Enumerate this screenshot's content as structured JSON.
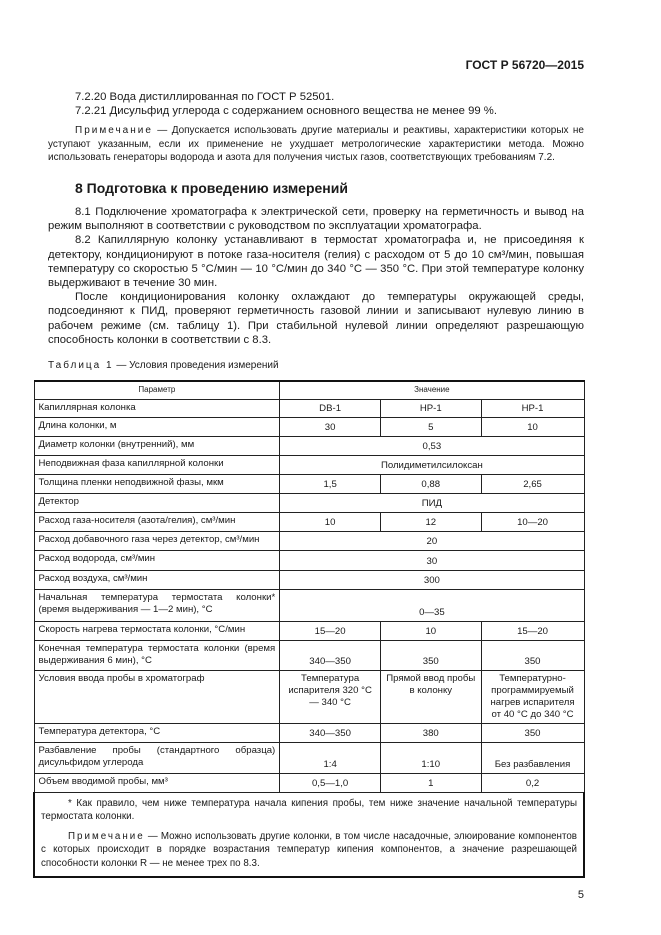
{
  "header": {
    "doc_id": "ГОСТ Р 56720—2015"
  },
  "paragraphs_top": [
    "7.2.20 Вода дистиллированная по ГОСТ Р 52501.",
    "7.2.21 Дисульфид углерода с содержанием основного вещества не менее 99 %."
  ],
  "note1": {
    "label": "Примечание",
    "text": " — Допускается использовать другие материалы и реактивы, характеристики которых не уступают указанным, если их применение не ухудшает метрологические характеристики метода. Можно использовать генераторы водорода и азота для получения чистых газов, соответствующих требованиям 7.2."
  },
  "section": {
    "title": "8 Подготовка к проведению измерений",
    "paragraphs": [
      "8.1 Подключение хроматографа к электрической сети, проверку на герметичность и вывод на режим выполняют в соответствии с руководством по эксплуатации хроматографа.",
      "8.2 Капиллярную колонку устанавливают в термостат хроматографа и, не присоединяя к детектору, кондиционируют в потоке газа-носителя (гелия) с расходом от 5 до 10 см³/мин, повышая температуру со скоростью 5 °С/мин — 10 °С/мин до 340 °С — 350 °С. При этой температуре колонку выдерживают в течение 30 мин.",
      "После кондиционирования колонку охлаждают до температуры окружающей среды, подсоединяют к ПИД, проверяют герметичность газовой линии и записывают нулевую линию в рабочем режиме (см. таблицу 1). При стабильной нулевой линии определяют разрешающую способность колонки в соответствии с 8.3."
    ]
  },
  "table": {
    "caption_label": "Таблица 1",
    "caption_text": " — Условия проведения измерений",
    "header": [
      "Параметр",
      "Значение"
    ],
    "rows": [
      {
        "h": 18,
        "cells": [
          [
            "Капиллярная колонка",
            1
          ],
          [
            "DB-1",
            1
          ],
          [
            "HP-1",
            1
          ],
          [
            "HP-1",
            1
          ]
        ]
      },
      {
        "h": 19,
        "cells": [
          [
            "Длина колонки, м",
            1
          ],
          [
            "30",
            1
          ],
          [
            "5",
            1
          ],
          [
            "10",
            1
          ]
        ]
      },
      {
        "h": 19,
        "cells": [
          [
            "Диаметр колонки (внутренний), мм",
            1
          ],
          [
            "0,53",
            3
          ]
        ]
      },
      {
        "h": 19,
        "cells": [
          [
            "Неподвижная фаза капиллярной колонки",
            1
          ],
          [
            "Полидиметилсилоксан",
            3
          ]
        ]
      },
      {
        "h": 19,
        "cells": [
          [
            "Толщина пленки неподвижной фазы, мкм",
            1
          ],
          [
            "1,5",
            1
          ],
          [
            "0,88",
            1
          ],
          [
            "2,65",
            1
          ]
        ]
      },
      {
        "h": 19,
        "cells": [
          [
            "Детектор",
            1
          ],
          [
            "ПИД",
            3
          ]
        ]
      },
      {
        "h": 19,
        "cells": [
          [
            "Расход газа-носителя (азота/гелия), см³/мин",
            1
          ],
          [
            "10",
            1
          ],
          [
            "12",
            1
          ],
          [
            "10—20",
            1
          ]
        ]
      },
      {
        "h": 19,
        "cells": [
          [
            "Расход добавочного газа через детектор, см³/мин",
            1
          ],
          [
            "20",
            3
          ]
        ]
      },
      {
        "h": 20,
        "cells": [
          [
            "Расход водорода, см³/мин",
            1
          ],
          [
            "30",
            3
          ]
        ]
      },
      {
        "h": 19,
        "cells": [
          [
            "Расход воздуха, см³/мин",
            1
          ],
          [
            "300",
            3
          ]
        ]
      },
      {
        "h": 32,
        "cells": [
          [
            "Начальная температура термостата колонки* (время выдерживания — 1—2 мин), °С",
            1
          ],
          [
            "0—35",
            3
          ]
        ]
      },
      {
        "h": 19,
        "cells": [
          [
            "Скорость нагрева термостата колонки, °С/мин",
            1
          ],
          [
            "15—20",
            1
          ],
          [
            "10",
            1
          ],
          [
            "15—20",
            1
          ]
        ]
      },
      {
        "h": 30,
        "cells": [
          [
            "Конечная температура термостата колонки (время выдерживания 6 мин), °С",
            1
          ],
          [
            "340—350",
            1
          ],
          [
            "350",
            1
          ],
          [
            "350",
            1
          ]
        ]
      },
      {
        "h": 53,
        "top": true,
        "cells": [
          [
            "Условия ввода пробы в хроматограф",
            1
          ],
          [
            "Температура испарителя 320 °С — 340 °С",
            1
          ],
          [
            "Прямой ввод пробы в колонку",
            1
          ],
          [
            "Температурно-программируемый нагрев испарителя от 40 °С до 340 °С",
            1
          ]
        ]
      },
      {
        "h": 19,
        "cells": [
          [
            "Температура детектора, °С",
            1
          ],
          [
            "340—350",
            1
          ],
          [
            "380",
            1
          ],
          [
            "350",
            1
          ]
        ]
      },
      {
        "h": 31,
        "cells": [
          [
            "Разбавление пробы (стандартного образца) дисульфидом углерода",
            1
          ],
          [
            "1:4",
            1
          ],
          [
            "1:10",
            1
          ],
          [
            "Без разбавления",
            1
          ]
        ]
      },
      {
        "h": 19,
        "cells": [
          [
            "Объем вводимой пробы, мм³",
            1
          ],
          [
            "0,5—1,0",
            1
          ],
          [
            "1",
            1
          ],
          [
            "0,2",
            1
          ]
        ]
      }
    ],
    "footnote": "* Как правило, чем ниже температура начала кипения пробы, тем ниже значение начальной температуры термостата колонки.",
    "note_label": "Примечание",
    "note_text": " — Можно использовать другие колонки, в том числе насадочные, элюирование компонентов с которых происходит в порядке возрастания температур кипения компонентов, а значение разрешающей способности колонки R — не менее трех по 8.3."
  },
  "page_number": "5"
}
